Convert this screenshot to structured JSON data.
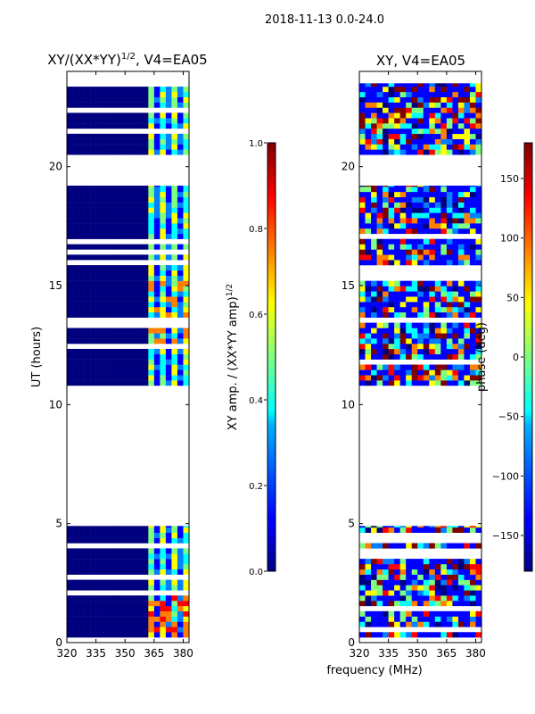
{
  "figure": {
    "suptitle": "2018-11-13 0.0-24.0",
    "xlabel": "frequency (MHz)"
  },
  "colors": {
    "jet": [
      "#00007f",
      "#0000ff",
      "#007fff",
      "#00ffff",
      "#7fff7f",
      "#ffff00",
      "#ff7f00",
      "#ff0000",
      "#7f0000"
    ]
  },
  "chart_data": [
    {
      "type": "heatmap",
      "title_main": "XY/(XX*YY)",
      "title_sup": "1/2",
      "title_tail": ", V4=EA05",
      "ylabel": "UT (hours)",
      "xlim": [
        320,
        383
      ],
      "ylim": [
        0,
        24
      ],
      "xticks": [
        320,
        335,
        350,
        365,
        380
      ],
      "yticks": [
        0,
        5,
        10,
        15,
        20
      ],
      "data_blocks_hours": [
        [
          0.0,
          4.9
        ],
        [
          10.8,
          19.2
        ],
        [
          20.5,
          23.5
        ]
      ],
      "active_band_mhz": [
        361,
        383
      ],
      "colorbar": {
        "label_main": "XY amp. / (XX*YY amp)",
        "label_sup": "1/2",
        "range": [
          0.0,
          1.0
        ],
        "ticks": [
          "0.0",
          "0.2",
          "0.4",
          "0.6",
          "0.8",
          "1.0"
        ]
      }
    },
    {
      "type": "heatmap",
      "title_main": "XY, V4=EA05",
      "ylabel": "",
      "xlim": [
        320,
        383
      ],
      "ylim": [
        0,
        24
      ],
      "xticks": [
        320,
        335,
        350,
        365,
        380
      ],
      "yticks": [
        0,
        5,
        10,
        15,
        20
      ],
      "data_blocks_hours": [
        [
          0.0,
          4.9
        ],
        [
          10.8,
          19.2
        ],
        [
          20.5,
          23.5
        ]
      ],
      "colorbar": {
        "label_main": "phase (deg)",
        "range": [
          -180,
          180
        ],
        "ticks": [
          "−150",
          "−100",
          "−50",
          "0",
          "50",
          "100",
          "150"
        ]
      }
    }
  ]
}
